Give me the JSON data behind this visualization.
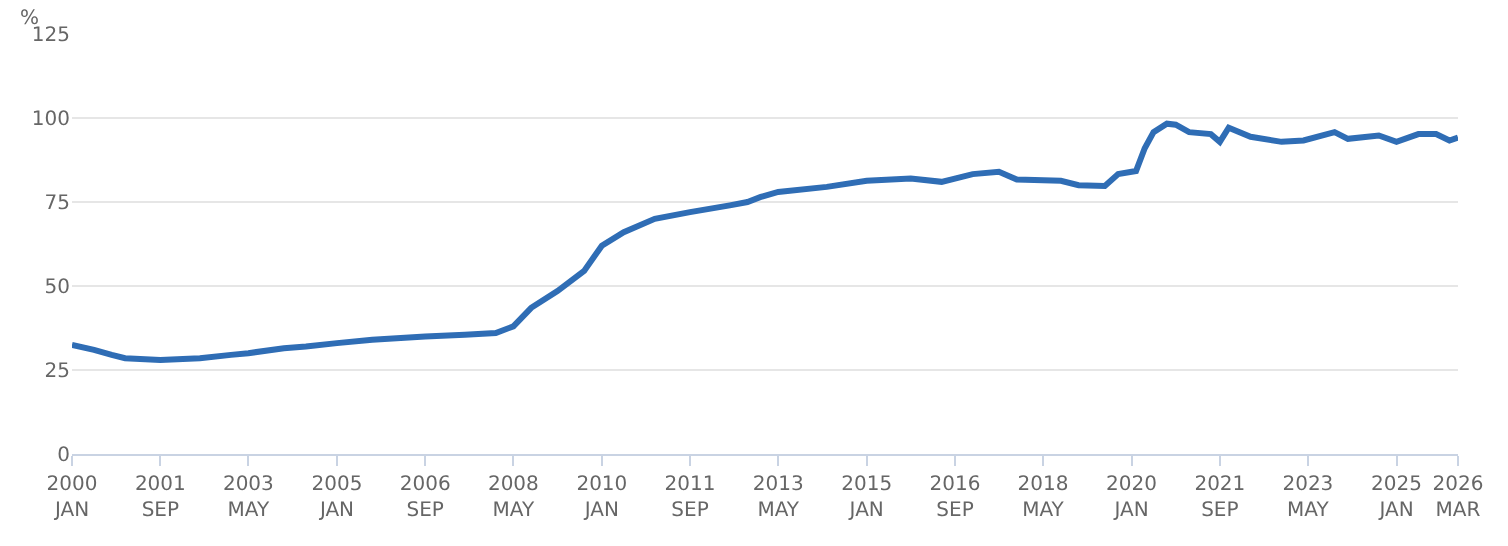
{
  "chart_data": {
    "type": "line",
    "ylabel": "%",
    "x": [
      "2000-01",
      "2000-06",
      "2000-10",
      "2001-01",
      "2001-09",
      "2002-06",
      "2003-01",
      "2003-05",
      "2004-01",
      "2004-06",
      "2005-01",
      "2005-09",
      "2006-09",
      "2007-06",
      "2008-01",
      "2008-05",
      "2008-09",
      "2009-03",
      "2009-09",
      "2010-01",
      "2010-06",
      "2011-01",
      "2011-09",
      "2012-06",
      "2012-10",
      "2013-01",
      "2013-05",
      "2014-04",
      "2015-01",
      "2015-11",
      "2016-06",
      "2017-01",
      "2017-07",
      "2017-11",
      "2018-09",
      "2019-01",
      "2019-07",
      "2019-10",
      "2020-02",
      "2020-04",
      "2020-06",
      "2020-09",
      "2020-11",
      "2021-02",
      "2021-07",
      "2021-09",
      "2021-11",
      "2022-04",
      "2022-11",
      "2023-04",
      "2023-11",
      "2024-02",
      "2024-09",
      "2025-01",
      "2025-06",
      "2025-10",
      "2026-01",
      "2026-03"
    ],
    "series": [
      {
        "color": "#2f6db5",
        "values": [
          32.5,
          31,
          29.5,
          28.5,
          28,
          28.5,
          29.5,
          30,
          31.5,
          32,
          33,
          34,
          35,
          35.5,
          36,
          38,
          43.5,
          48.5,
          54.5,
          62,
          66,
          70,
          72,
          74,
          75,
          76.5,
          78,
          79.5,
          81.3,
          82,
          81,
          83.3,
          84,
          81.7,
          81.3,
          80,
          79.8,
          83.3,
          84.2,
          91,
          95.8,
          98.3,
          98,
          95.8,
          95.2,
          92.9,
          97.1,
          94.4,
          92.9,
          93.3,
          95.8,
          93.8,
          94.8,
          92.9,
          95.2,
          95.2,
          93.3,
          94.2
        ]
      }
    ],
    "xlim": [
      "2000-01",
      "2026-03"
    ],
    "xticks": [
      {
        "value": "2000-01",
        "label": "2000\nJAN"
      },
      {
        "value": "2001-09",
        "label": "2001\nSEP"
      },
      {
        "value": "2003-05",
        "label": "2003\nMAY"
      },
      {
        "value": "2005-01",
        "label": "2005\nJAN"
      },
      {
        "value": "2006-09",
        "label": "2006\nSEP"
      },
      {
        "value": "2008-05",
        "label": "2008\nMAY"
      },
      {
        "value": "2010-01",
        "label": "2010\nJAN"
      },
      {
        "value": "2011-09",
        "label": "2011\nSEP"
      },
      {
        "value": "2013-05",
        "label": "2013\nMAY"
      },
      {
        "value": "2015-01",
        "label": "2015\nJAN"
      },
      {
        "value": "2016-09",
        "label": "2016\nSEP"
      },
      {
        "value": "2018-05",
        "label": "2018\nMAY"
      },
      {
        "value": "2020-01",
        "label": "2020\nJAN"
      },
      {
        "value": "2021-09",
        "label": "2021\nSEP"
      },
      {
        "value": "2023-05",
        "label": "2023\nMAY"
      },
      {
        "value": "2025-01",
        "label": "2025\nJAN"
      },
      {
        "value": "2026-03",
        "label": "2026\nMAR"
      }
    ],
    "ylim": [
      0,
      125
    ],
    "yticks": [
      0,
      25,
      50,
      75,
      100,
      125
    ],
    "grid": "y",
    "marker": "none",
    "line_style": "solid"
  }
}
